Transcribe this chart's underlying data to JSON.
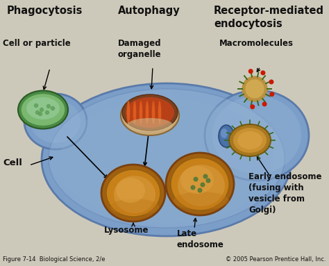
{
  "bg_color": "#cdc9ba",
  "fig_width": 4.74,
  "fig_height": 3.83,
  "dpi": 100,
  "cell_color": "#7b9ec8",
  "cell_edge": "#5a7aaa",
  "cell_highlight": "#9ab8d8",
  "header_phagocytosis": "Phagocytosis",
  "header_autophagy": "Autophagy",
  "header_receptor": "Receptor-mediated\nendocytosis",
  "label_cell_particle": "Cell or particle",
  "label_damaged": "Damaged\norganelle",
  "label_macromolecules": "Macromolecules",
  "label_cell": "Cell",
  "label_lysosome": "Lysosome",
  "label_late_endosome": "Late\nendosome",
  "label_early_endosome": "Early endosome\n(fusing with\nvesicle from\nGolgi)",
  "caption_left": "Figure 7-14  Biological Science, 2/e",
  "caption_right": "© 2005 Pearson Prentice Hall, Inc.",
  "font_color": "#111111",
  "header_fontsize": 10.5,
  "label_fontsize": 8.5,
  "caption_fontsize": 6.0
}
